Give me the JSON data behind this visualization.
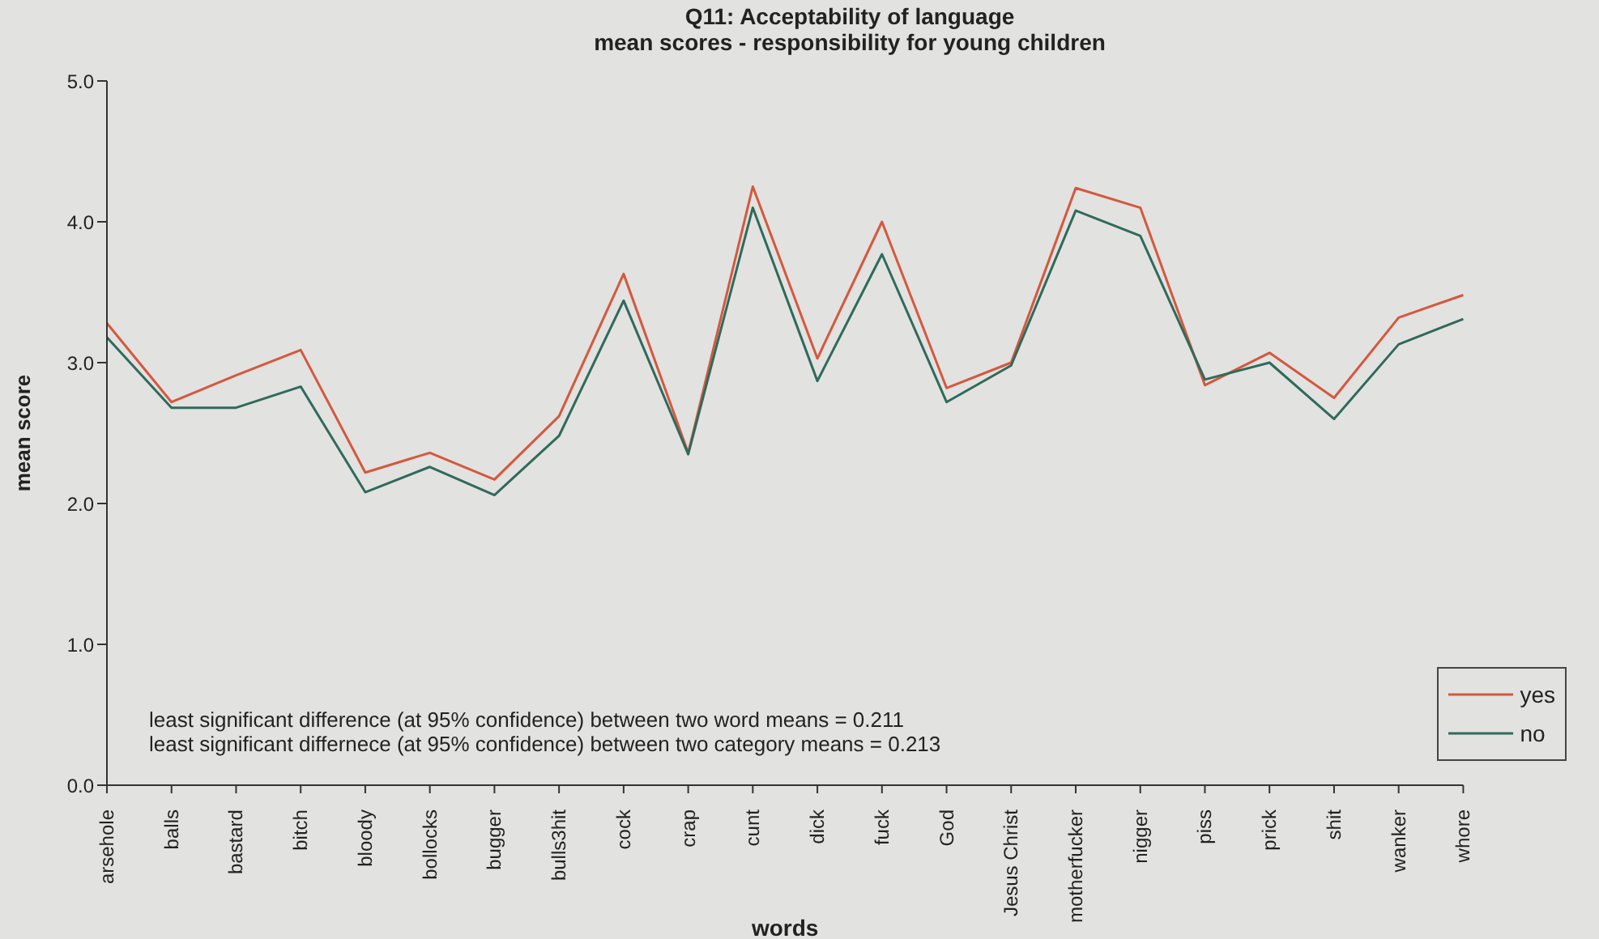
{
  "chart_data": {
    "type": "line",
    "title": "Q11: Acceptability of language",
    "subtitle": "mean scores - responsibility for young children",
    "xlabel": "words",
    "ylabel": "mean score",
    "categories": [
      "arsehole",
      "balls",
      "bastard",
      "bitch",
      "bloody",
      "bollocks",
      "bugger",
      "bulls3hit",
      "cock",
      "crap",
      "cunt",
      "dick",
      "fuck",
      "God",
      "Jesus Christ",
      "motherfucker",
      "nigger",
      "piss",
      "prick",
      "shit",
      "wanker",
      "whore"
    ],
    "series": [
      {
        "name": "yes",
        "color": "#d4583e",
        "values": [
          3.28,
          2.72,
          2.91,
          3.09,
          2.22,
          2.36,
          2.17,
          2.62,
          3.63,
          2.36,
          4.25,
          3.03,
          4.0,
          2.82,
          3.0,
          4.24,
          4.1,
          2.84,
          3.07,
          2.75,
          3.32,
          3.48
        ]
      },
      {
        "name": "no",
        "color": "#2f6a5c",
        "values": [
          3.18,
          2.68,
          2.68,
          2.83,
          2.08,
          2.26,
          2.06,
          2.48,
          3.44,
          2.35,
          4.1,
          2.87,
          3.77,
          2.72,
          2.98,
          4.08,
          3.9,
          2.88,
          3.0,
          2.6,
          3.13,
          3.31
        ]
      }
    ],
    "ylim": [
      0,
      5
    ],
    "yticks": [
      {
        "value": 0,
        "label": "0.0"
      },
      {
        "value": 1,
        "label": "1.0"
      },
      {
        "value": 2,
        "label": "2.0"
      },
      {
        "value": 3,
        "label": "3.0"
      },
      {
        "value": 4,
        "label": "4.0"
      },
      {
        "value": 5,
        "label": "5.0"
      }
    ],
    "legend": "bottom right",
    "marker": "none",
    "line_style": "solid",
    "grid": false,
    "annotations": [
      "least significant difference (at 95% confidence) between two word means = 0.211",
      "least significant differnece (at 95% confidence) between two category means = 0.213"
    ]
  }
}
